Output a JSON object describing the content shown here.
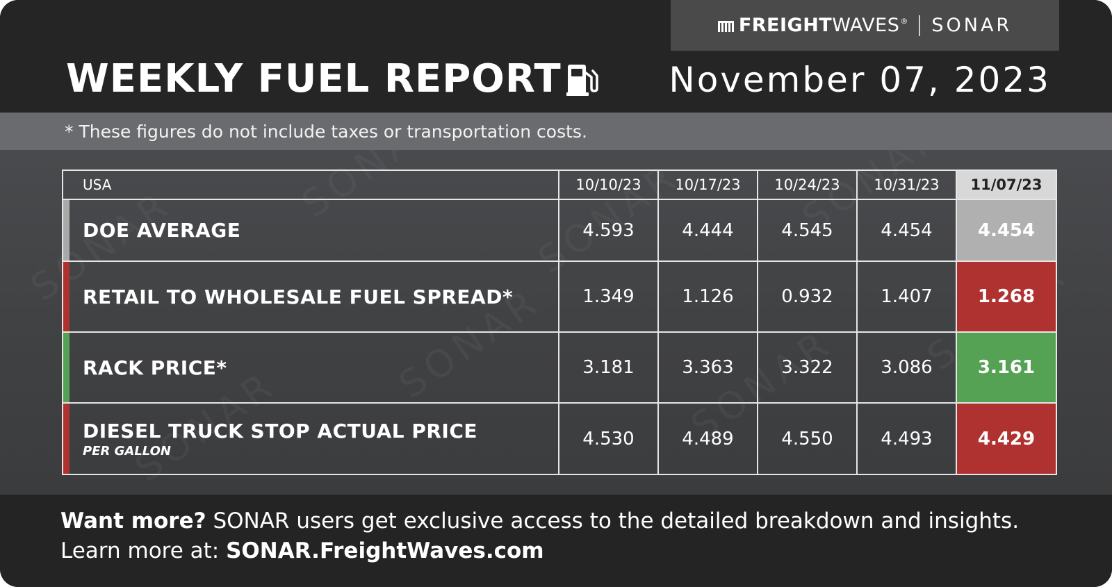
{
  "brand": {
    "freight": "FREIGHT",
    "waves": "WAVES",
    "reg": "®",
    "sonar": "SONAR"
  },
  "header": {
    "title": "WEEKLY FUEL REPORT",
    "pump_icon": "fuel-pump-icon",
    "date": "November 07, 2023"
  },
  "note": "* These figures do not include taxes or transportation costs.",
  "watermark_text": "SONAR",
  "table": {
    "region": "USA",
    "dates": [
      "10/10/23",
      "10/17/23",
      "10/24/23",
      "10/31/23"
    ],
    "current_date": "11/07/23",
    "rows": [
      {
        "label": "DOE AVERAGE",
        "sublabel": "",
        "values": [
          "4.593",
          "4.444",
          "4.545",
          "4.454"
        ],
        "current": "4.454",
        "accent_color": "#a9a9a9",
        "current_bg": "#b0b0b0"
      },
      {
        "label": "RETAIL TO WHOLESALE FUEL SPREAD*",
        "sublabel": "",
        "values": [
          "1.349",
          "1.126",
          "0.932",
          "1.407"
        ],
        "current": "1.268",
        "accent_color": "#b03230",
        "current_bg": "#b03230"
      },
      {
        "label": "RACK PRICE*",
        "sublabel": "",
        "values": [
          "3.181",
          "3.363",
          "3.322",
          "3.086"
        ],
        "current": "3.161",
        "accent_color": "#55a254",
        "current_bg": "#55a254"
      },
      {
        "label": "DIESEL TRUCK STOP ACTUAL PRICE",
        "sublabel": "PER GALLON",
        "values": [
          "4.530",
          "4.489",
          "4.550",
          "4.493"
        ],
        "current": "4.429",
        "accent_color": "#b03230",
        "current_bg": "#b03230"
      }
    ]
  },
  "footer": {
    "line1_bold": "Want more?",
    "line1_rest": " SONAR users get exclusive access to the detailed breakdown and insights.",
    "line2_prefix": "Learn more at: ",
    "line2_link": "SONAR.FreightWaves.com"
  }
}
